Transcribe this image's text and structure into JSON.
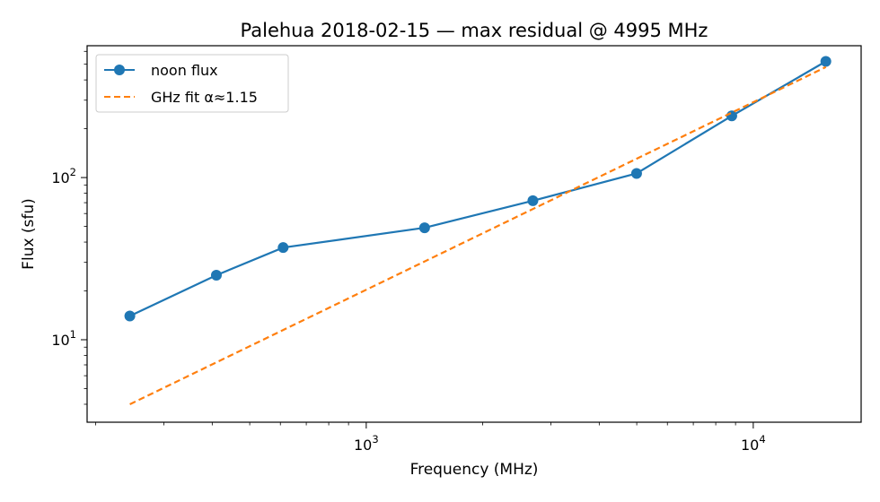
{
  "chart_data": {
    "type": "line",
    "title": "Palehua 2018-02-15 — max residual @ 4995 MHz",
    "xlabel": "Frequency (MHz)",
    "ylabel": "Flux (sfu)",
    "x_scale": "log",
    "y_scale": "log",
    "xlim": [
      190,
      19000
    ],
    "ylim": [
      3.1,
      650
    ],
    "grid": false,
    "legend_position": "upper-left",
    "x_major_ticks": [
      {
        "value": 1000,
        "base": "10",
        "exp": "3"
      },
      {
        "value": 10000,
        "base": "10",
        "exp": "4"
      }
    ],
    "y_major_ticks": [
      {
        "value": 10,
        "base": "10",
        "exp": "1"
      },
      {
        "value": 100,
        "base": "10",
        "exp": "2"
      }
    ],
    "series": [
      {
        "name": "noon flux",
        "style": "line-marker",
        "color": "#1f77b4",
        "x": [
          245,
          410,
          610,
          1415,
          2695,
          4995,
          8800,
          15400
        ],
        "y": [
          14,
          25,
          37,
          49,
          72,
          106,
          240,
          520
        ]
      },
      {
        "name": "GHz fit α≈1.15",
        "style": "dashed",
        "color": "#ff7f0e",
        "x": [
          245,
          15400
        ],
        "y": [
          4.0,
          480
        ]
      }
    ]
  }
}
